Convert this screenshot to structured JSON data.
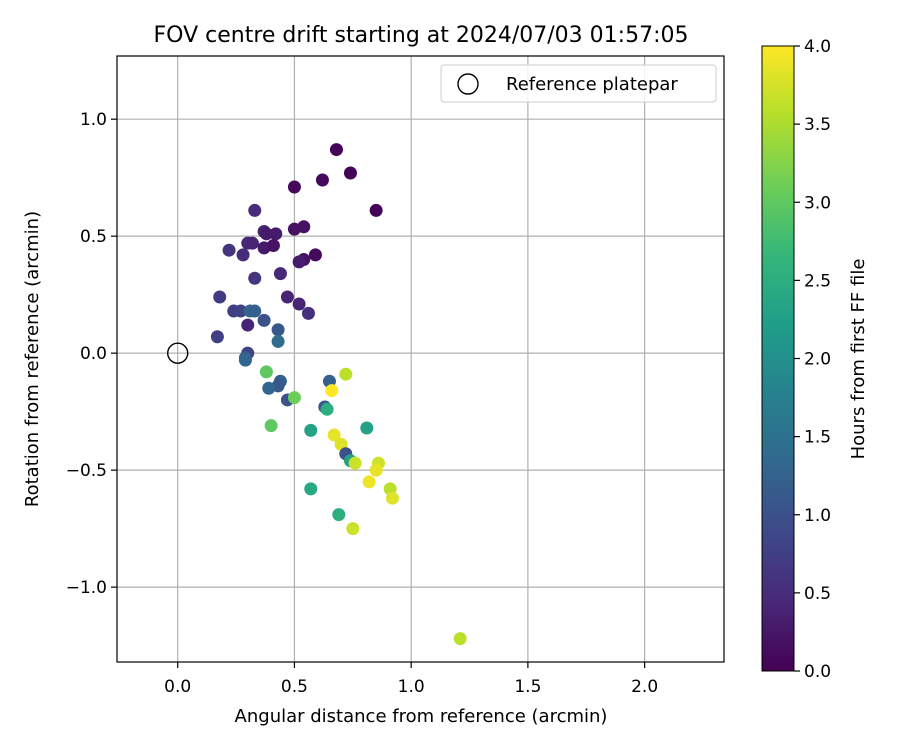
{
  "chart_data": {
    "type": "scatter",
    "title": "FOV centre drift starting at 2024/07/03 01:57:05",
    "xlabel": "Angular distance from reference (arcmin)",
    "ylabel": "Rotation from reference (arcmin)",
    "xlim": [
      -0.26,
      2.34
    ],
    "ylim": [
      -1.32,
      1.27
    ],
    "xticks": [
      0.0,
      0.5,
      1.0,
      1.5,
      2.0
    ],
    "xtick_labels": [
      "0.0",
      "0.5",
      "1.0",
      "1.5",
      "2.0"
    ],
    "yticks": [
      -1.0,
      -0.5,
      0.0,
      0.5,
      1.0
    ],
    "ytick_labels": [
      "−1.0",
      "−0.5",
      "0.0",
      "0.5",
      "1.0"
    ],
    "grid": true,
    "legend": {
      "position": "top-right",
      "entries": [
        "Reference platepar"
      ]
    },
    "reference_point": {
      "x": 0.0,
      "y": 0.0,
      "marker": "open-circle",
      "color": "#000000"
    },
    "colorbar": {
      "label": "Hours from first FF file",
      "range": [
        0.0,
        4.0
      ],
      "ticks": [
        0.0,
        0.5,
        1.0,
        1.5,
        2.0,
        2.5,
        3.0,
        3.5,
        4.0
      ],
      "tick_labels": [
        "0.0",
        "0.5",
        "1.0",
        "1.5",
        "2.0",
        "2.5",
        "3.0",
        "3.5",
        "4.0"
      ],
      "colormap": "viridis",
      "colormap_stops": [
        "#440154",
        "#482878",
        "#3e4989",
        "#31688e",
        "#26828e",
        "#1f9e89",
        "#35b779",
        "#6ece58",
        "#b5de2b",
        "#fde725"
      ]
    },
    "points": [
      {
        "x": 0.68,
        "y": 0.87,
        "t": 0.05
      },
      {
        "x": 0.74,
        "y": 0.77,
        "t": 0.05
      },
      {
        "x": 0.85,
        "y": 0.61,
        "t": 0.05
      },
      {
        "x": 0.5,
        "y": 0.71,
        "t": 0.1
      },
      {
        "x": 0.62,
        "y": 0.74,
        "t": 0.1
      },
      {
        "x": 0.33,
        "y": 0.61,
        "t": 0.5
      },
      {
        "x": 0.54,
        "y": 0.54,
        "t": 0.2
      },
      {
        "x": 0.5,
        "y": 0.53,
        "t": 0.2
      },
      {
        "x": 0.37,
        "y": 0.52,
        "t": 0.4
      },
      {
        "x": 0.42,
        "y": 0.51,
        "t": 0.3
      },
      {
        "x": 0.38,
        "y": 0.51,
        "t": 0.3
      },
      {
        "x": 0.3,
        "y": 0.47,
        "t": 0.45
      },
      {
        "x": 0.32,
        "y": 0.47,
        "t": 0.4
      },
      {
        "x": 0.37,
        "y": 0.45,
        "t": 0.3
      },
      {
        "x": 0.41,
        "y": 0.46,
        "t": 0.2
      },
      {
        "x": 0.22,
        "y": 0.44,
        "t": 0.6
      },
      {
        "x": 0.28,
        "y": 0.42,
        "t": 0.5
      },
      {
        "x": 0.59,
        "y": 0.42,
        "t": 0.1
      },
      {
        "x": 0.54,
        "y": 0.4,
        "t": 0.2
      },
      {
        "x": 0.52,
        "y": 0.39,
        "t": 0.3
      },
      {
        "x": 0.44,
        "y": 0.34,
        "t": 0.45
      },
      {
        "x": 0.33,
        "y": 0.32,
        "t": 0.6
      },
      {
        "x": 0.18,
        "y": 0.24,
        "t": 0.7
      },
      {
        "x": 0.47,
        "y": 0.24,
        "t": 0.4
      },
      {
        "x": 0.52,
        "y": 0.21,
        "t": 0.4
      },
      {
        "x": 0.24,
        "y": 0.18,
        "t": 0.75
      },
      {
        "x": 0.27,
        "y": 0.18,
        "t": 0.8
      },
      {
        "x": 0.31,
        "y": 0.18,
        "t": 1.3
      },
      {
        "x": 0.33,
        "y": 0.18,
        "t": 1.2
      },
      {
        "x": 0.56,
        "y": 0.17,
        "t": 0.55
      },
      {
        "x": 0.37,
        "y": 0.14,
        "t": 1.0
      },
      {
        "x": 0.3,
        "y": 0.12,
        "t": 0.4
      },
      {
        "x": 0.43,
        "y": 0.1,
        "t": 1.1
      },
      {
        "x": 0.17,
        "y": 0.07,
        "t": 0.75
      },
      {
        "x": 0.43,
        "y": 0.05,
        "t": 1.4
      },
      {
        "x": 0.3,
        "y": 0.0,
        "t": 0.8
      },
      {
        "x": 0.29,
        "y": -0.02,
        "t": 1.2
      },
      {
        "x": 0.29,
        "y": -0.03,
        "t": 1.3
      },
      {
        "x": 0.38,
        "y": -0.08,
        "t": 3.0
      },
      {
        "x": 0.72,
        "y": -0.09,
        "t": 3.6
      },
      {
        "x": 0.65,
        "y": -0.12,
        "t": 1.2
      },
      {
        "x": 0.44,
        "y": -0.12,
        "t": 1.2
      },
      {
        "x": 0.43,
        "y": -0.14,
        "t": 1.1
      },
      {
        "x": 0.39,
        "y": -0.15,
        "t": 1.3
      },
      {
        "x": 0.66,
        "y": -0.16,
        "t": 4.0
      },
      {
        "x": 0.47,
        "y": -0.2,
        "t": 1.0
      },
      {
        "x": 0.5,
        "y": -0.19,
        "t": 3.1
      },
      {
        "x": 0.63,
        "y": -0.23,
        "t": 1.1
      },
      {
        "x": 0.64,
        "y": -0.24,
        "t": 2.5
      },
      {
        "x": 0.4,
        "y": -0.31,
        "t": 3.0
      },
      {
        "x": 0.57,
        "y": -0.33,
        "t": 2.3
      },
      {
        "x": 0.81,
        "y": -0.32,
        "t": 2.3
      },
      {
        "x": 0.67,
        "y": -0.35,
        "t": 3.85
      },
      {
        "x": 0.7,
        "y": -0.39,
        "t": 3.8
      },
      {
        "x": 0.72,
        "y": -0.43,
        "t": 1.0
      },
      {
        "x": 0.74,
        "y": -0.46,
        "t": 2.3
      },
      {
        "x": 0.76,
        "y": -0.47,
        "t": 3.7
      },
      {
        "x": 0.86,
        "y": -0.47,
        "t": 3.7
      },
      {
        "x": 0.85,
        "y": -0.5,
        "t": 3.85
      },
      {
        "x": 0.82,
        "y": -0.55,
        "t": 3.9
      },
      {
        "x": 0.91,
        "y": -0.58,
        "t": 3.6
      },
      {
        "x": 0.92,
        "y": -0.62,
        "t": 3.8
      },
      {
        "x": 0.57,
        "y": -0.58,
        "t": 2.4
      },
      {
        "x": 0.69,
        "y": -0.69,
        "t": 2.5
      },
      {
        "x": 0.75,
        "y": -0.75,
        "t": 3.7
      },
      {
        "x": 1.21,
        "y": -1.22,
        "t": 3.6
      }
    ]
  }
}
